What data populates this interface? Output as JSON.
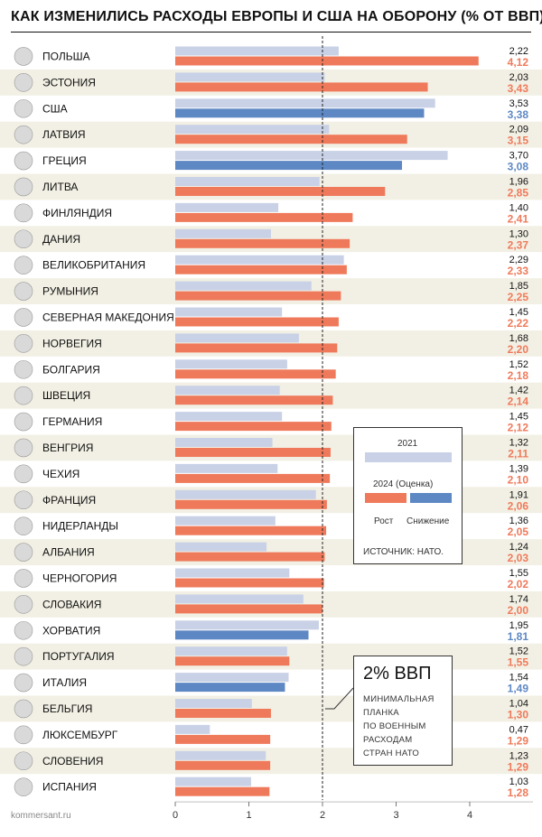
{
  "title": "КАК ИЗМЕНИЛИСЬ РАСХОДЫ ЕВРОПЫ И США НА ОБОРОНУ (% ОТ ВВП)",
  "source_site": "kommersant.ru",
  "colors": {
    "bar_2021": "#c9d1e6",
    "increase": "#ef7a5b",
    "decrease": "#5e88c4",
    "row_shade": "#f2f0e4",
    "value_increase": "#ef7a5b",
    "value_decrease": "#5e88c4"
  },
  "legend": {
    "year_2021": "2021",
    "year_2024": "2024 (Оценка)",
    "growth": "Рост",
    "decline": "Снижение",
    "source": "ИСТОЧНИК: НАТО."
  },
  "callout": {
    "title": "2% ВВП",
    "lines": [
      "МИНИМАЛЬНАЯ",
      "ПЛАНКА",
      "ПО ВОЕННЫМ",
      "РАСХОДАМ",
      "СТРАН НАТО"
    ]
  },
  "chart_data": {
    "type": "bar",
    "orientation": "horizontal",
    "title": "КАК ИЗМЕНИЛИСЬ РАСХОДЫ ЕВРОПЫ И США НА ОБОРОНУ (% ОТ ВВП)",
    "xlabel": "",
    "ylabel": "",
    "xlim": [
      0,
      4.3
    ],
    "xticks": [
      "0",
      "1",
      "2",
      "3",
      "4"
    ],
    "reference_line": {
      "x": 2,
      "label": "2% ВВП"
    },
    "series_names": [
      "2021",
      "2024 (Оценка)"
    ],
    "categories": [
      "ПОЛЬША",
      "ЭСТОНИЯ",
      "США",
      "ЛАТВИЯ",
      "ГРЕЦИЯ",
      "ЛИТВА",
      "ФИНЛЯНДИЯ",
      "ДАНИЯ",
      "ВЕЛИКОБРИТАНИЯ",
      "РУМЫНИЯ",
      "СЕВЕРНАЯ МАКЕДОНИЯ",
      "НОРВЕГИЯ",
      "БОЛГАРИЯ",
      "ШВЕЦИЯ",
      "ГЕРМАНИЯ",
      "ВЕНГРИЯ",
      "ЧЕХИЯ",
      "ФРАНЦИЯ",
      "НИДЕРЛАНДЫ",
      "АЛБАНИЯ",
      "ЧЕРНОГОРИЯ",
      "СЛОВАКИЯ",
      "ХОРВАТИЯ",
      "ПОРТУГАЛИЯ",
      "ИТАЛИЯ",
      "БЕЛЬГИЯ",
      "ЛЮКСЕМБУРГ",
      "СЛОВЕНИЯ",
      "ИСПАНИЯ"
    ],
    "values_2021": [
      2.22,
      2.03,
      3.53,
      2.09,
      3.7,
      1.96,
      1.4,
      1.3,
      2.29,
      1.85,
      1.45,
      1.68,
      1.52,
      1.42,
      1.45,
      1.32,
      1.39,
      1.91,
      1.36,
      1.24,
      1.55,
      1.74,
      1.95,
      1.52,
      1.54,
      1.04,
      0.47,
      1.23,
      1.03
    ],
    "values_2024": [
      4.12,
      3.43,
      3.38,
      3.15,
      3.08,
      2.85,
      2.41,
      2.37,
      2.33,
      2.25,
      2.22,
      2.2,
      2.18,
      2.14,
      2.12,
      2.11,
      2.1,
      2.06,
      2.05,
      2.03,
      2.02,
      2.0,
      1.81,
      1.55,
      1.49,
      1.3,
      1.29,
      1.29,
      1.28
    ],
    "labels_2021": [
      "2,22",
      "2,03",
      "3,53",
      "2,09",
      "3,70",
      "1,96",
      "1,40",
      "1,30",
      "2,29",
      "1,85",
      "1,45",
      "1,68",
      "1,52",
      "1,42",
      "1,45",
      "1,32",
      "1,39",
      "1,91",
      "1,36",
      "1,24",
      "1,55",
      "1,74",
      "1,95",
      "1,52",
      "1,54",
      "1,04",
      "0,47",
      "1,23",
      "1,03"
    ],
    "labels_2024": [
      "4,12",
      "3,43",
      "3,38",
      "3,15",
      "3,08",
      "2,85",
      "2,41",
      "2,37",
      "2,33",
      "2,25",
      "2,22",
      "2,20",
      "2,18",
      "2,14",
      "2,12",
      "2,11",
      "2,10",
      "2,06",
      "2,05",
      "2,03",
      "2,02",
      "2,00",
      "1,81",
      "1,55",
      "1,49",
      "1,30",
      "1,29",
      "1,29",
      "1,28"
    ]
  }
}
